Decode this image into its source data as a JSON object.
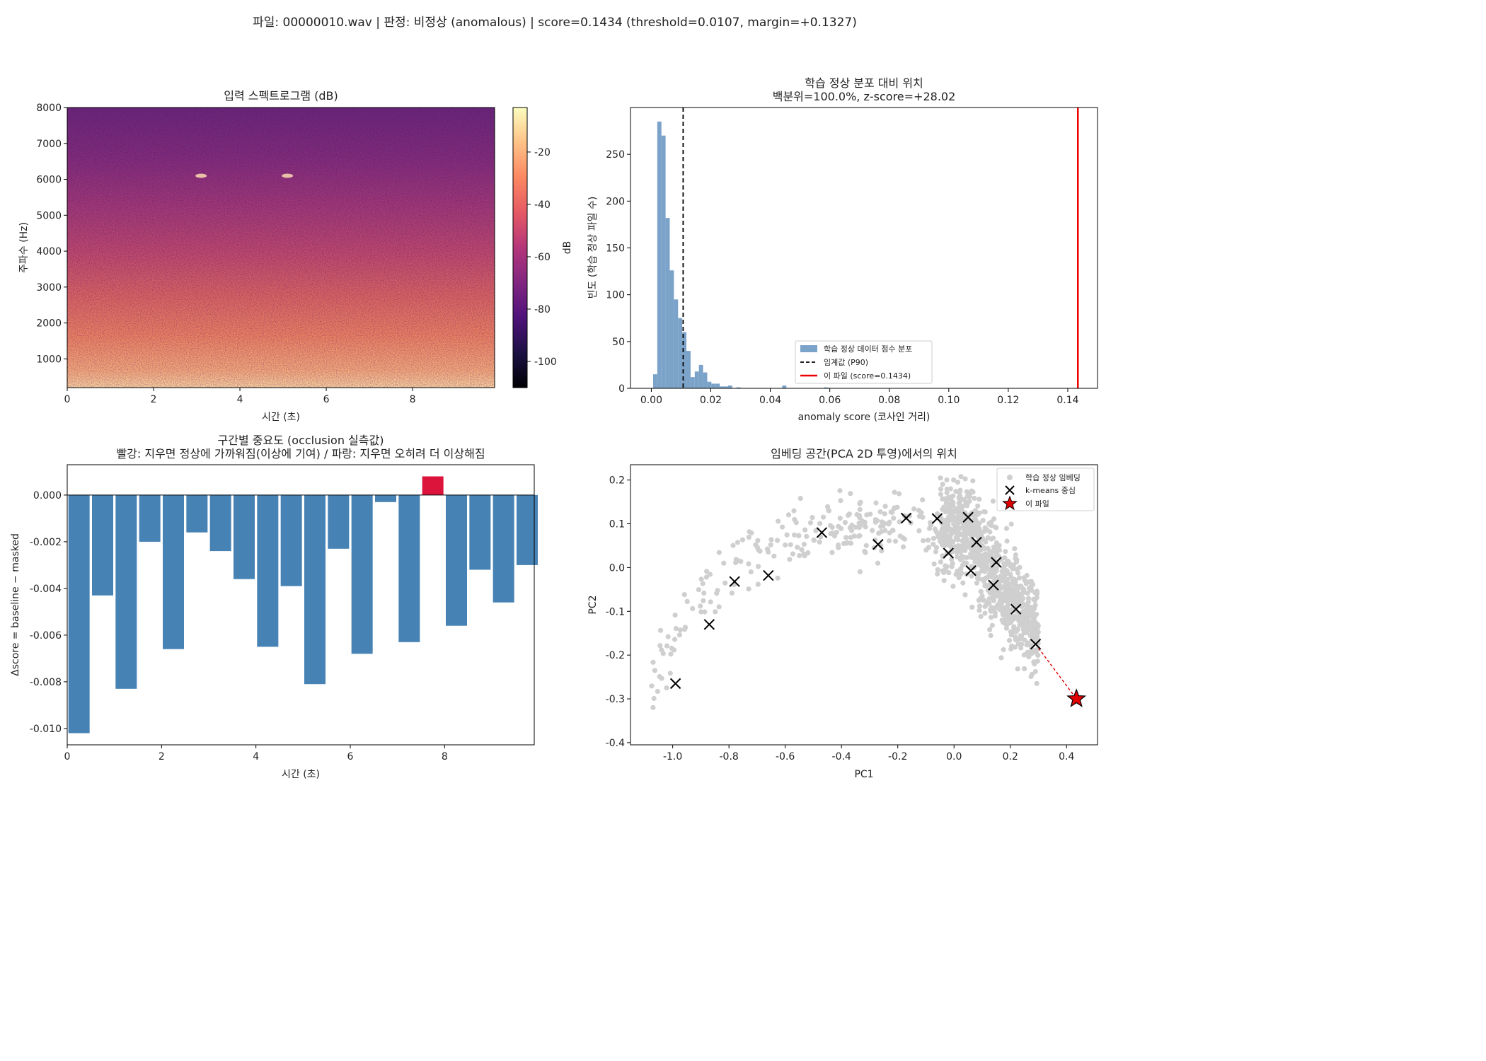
{
  "suptitle": "파일: 00000010.wav  |  판정: 비정상 (anomalous)  |  score=0.1434  (threshold=0.0107, margin=+0.1327)",
  "chart_data": [
    {
      "type": "heatmap",
      "title": "입력 스펙트로그램 (dB)",
      "xlabel": "시간 (초)",
      "ylabel": "주파수 (Hz)",
      "xlim": [
        0,
        9.9
      ],
      "ylim": [
        200,
        8000
      ],
      "xticks": [
        0,
        2,
        4,
        6,
        8
      ],
      "yticks": [
        1000,
        2000,
        3000,
        4000,
        5000,
        6000,
        7000,
        8000
      ],
      "colormap": "magma",
      "colorbar": {
        "label": "dB",
        "range": [
          -110,
          -3
        ],
        "ticks": [
          -20,
          -40,
          -60,
          -80,
          -100
        ]
      },
      "features": [
        {
          "time": 3.1,
          "freq": 6100
        },
        {
          "time": 5.1,
          "freq": 6100
        }
      ]
    },
    {
      "type": "bar",
      "title": "학습 정상 분포 대비 위치",
      "subtitle": "백분위=100.0%, z-score=+28.02",
      "xlabel": "anomaly score (코사인 거리)",
      "ylabel": "빈도 (학습 정상 파일 수)",
      "xlim": [
        -0.007,
        0.15
      ],
      "ylim": [
        0,
        300
      ],
      "xticks": [
        0.0,
        0.02,
        0.04,
        0.06,
        0.08,
        0.1,
        0.12,
        0.14
      ],
      "xtick_labels": [
        "0.00",
        "0.02",
        "0.04",
        "0.06",
        "0.08",
        "0.10",
        "0.12",
        "0.14"
      ],
      "yticks": [
        0,
        50,
        100,
        150,
        200,
        250
      ],
      "bin_width": 0.0014,
      "bin_start": 0.0006,
      "counts": [
        15,
        285,
        270,
        182,
        126,
        95,
        75,
        60,
        40,
        12,
        18,
        25,
        17,
        7,
        5,
        5,
        2,
        2,
        3,
        0,
        1,
        0,
        0,
        0,
        0,
        0,
        0,
        0,
        0,
        0,
        0,
        3,
        0,
        0,
        0,
        0,
        0,
        0,
        0,
        0,
        0,
        1
      ],
      "threshold": 0.0107,
      "score": 0.1434,
      "legend": [
        {
          "label": "학습 정상 데이터 점수 분포",
          "color": "#7ba3c9",
          "style": "patch"
        },
        {
          "label": "임계값 (P90)",
          "color": "#000000",
          "style": "dashed"
        },
        {
          "label": "이 파일 (score=0.1434)",
          "color": "#ee0000",
          "style": "line"
        }
      ],
      "legend_position": "lower-center"
    },
    {
      "type": "bar",
      "title": "구간별 중요도 (occlusion 실측값)",
      "subtitle": "빨강: 지우면 정상에 가까워짐(이상에 기여) / 파랑: 지우면 오히려 더 이상해짐",
      "xlabel": "시간 (초)",
      "ylabel": "Δscore = baseline − masked",
      "xlim": [
        0,
        9.9
      ],
      "ylim": [
        -0.0107,
        0.0013
      ],
      "xticks": [
        0,
        2,
        4,
        6,
        8
      ],
      "yticks": [
        0.0,
        -0.002,
        -0.004,
        -0.006,
        -0.008,
        -0.01
      ],
      "ytick_labels": [
        "0.000",
        "-0.002",
        "-0.004",
        "-0.006",
        "-0.008",
        "-0.010"
      ],
      "x": [
        0.25,
        0.75,
        1.25,
        1.75,
        2.25,
        2.75,
        3.25,
        3.75,
        4.25,
        4.75,
        5.25,
        5.75,
        6.25,
        6.75,
        7.25,
        7.75,
        8.25,
        8.75,
        9.25,
        9.75
      ],
      "values": [
        -0.0102,
        -0.0043,
        -0.0083,
        -0.002,
        -0.0066,
        -0.0016,
        -0.0024,
        -0.0036,
        -0.0065,
        -0.0039,
        -0.0081,
        -0.0023,
        -0.0068,
        -0.0003,
        -0.0063,
        0.0008,
        -0.0056,
        -0.0032,
        -0.0046,
        -0.003
      ],
      "positive_color": "#dc143c",
      "negative_color": "#4682b4"
    },
    {
      "type": "scatter",
      "title": "임베딩 공간(PCA 2D 투영)에서의 위치",
      "xlabel": "PC1",
      "ylabel": "PC2",
      "xlim": [
        -1.15,
        0.51
      ],
      "ylim": [
        -0.405,
        0.235
      ],
      "xticks": [
        -1.0,
        -0.8,
        -0.6,
        -0.4,
        -0.2,
        0.0,
        0.2,
        0.4
      ],
      "xtick_labels": [
        "-1.0",
        "-0.8",
        "-0.6",
        "-0.4",
        "-0.2",
        "0.0",
        "0.2",
        "0.4"
      ],
      "yticks": [
        0.2,
        0.1,
        0.0,
        -0.1,
        -0.2,
        -0.3,
        -0.4
      ],
      "ytick_labels": [
        "0.2",
        "0.1",
        "0.0",
        "-0.1",
        "-0.2",
        "-0.3",
        "-0.4"
      ],
      "centers": [
        [
          -0.99,
          -0.265
        ],
        [
          -0.87,
          -0.13
        ],
        [
          -0.78,
          -0.032
        ],
        [
          -0.66,
          -0.018
        ],
        [
          -0.47,
          0.08
        ],
        [
          -0.27,
          0.053
        ],
        [
          -0.17,
          0.113
        ],
        [
          -0.06,
          0.112
        ],
        [
          -0.02,
          0.033
        ],
        [
          0.05,
          0.115
        ],
        [
          0.08,
          0.058
        ],
        [
          0.06,
          -0.007
        ],
        [
          0.15,
          0.012
        ],
        [
          0.14,
          -0.04
        ],
        [
          0.22,
          -0.095
        ],
        [
          0.29,
          -0.175
        ]
      ],
      "this_file": [
        0.435,
        -0.3
      ],
      "nearest_center": [
        0.29,
        -0.175
      ],
      "legend": [
        {
          "label": "학습 정상 임베딩",
          "color": "#cfcfcf",
          "style": "dot"
        },
        {
          "label": "k-means 중심",
          "color": "#000000",
          "style": "x"
        },
        {
          "label": "이 파일",
          "color": "#e00000",
          "style": "star"
        }
      ],
      "legend_position": "upper-right"
    }
  ]
}
